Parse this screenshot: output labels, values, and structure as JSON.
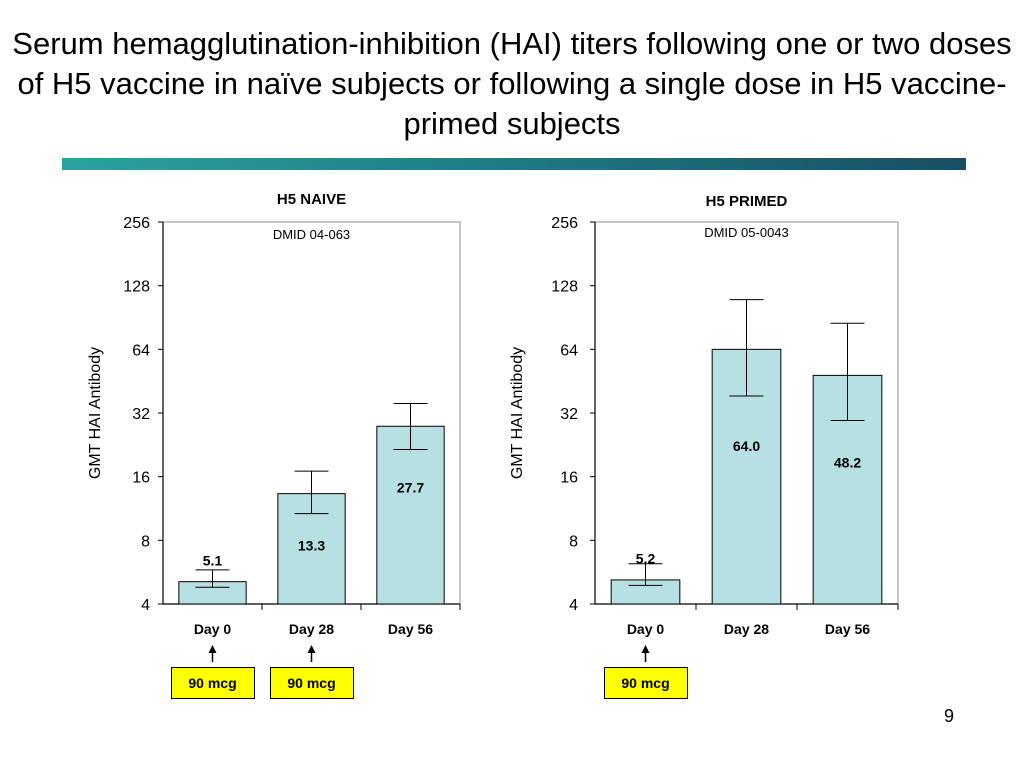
{
  "title": "Serum hemagglutination-inhibition (HAI) titers following one or two doses of H5 vaccine in naïve subjects or following a single dose in H5 vaccine-primed subjects",
  "page_number": "9",
  "dose_label": "90 mcg",
  "colors": {
    "bar_fill": "#b7e0e4",
    "bar_stroke": "#000000",
    "dose_box": "#ffff00"
  },
  "chart_data": [
    {
      "type": "bar",
      "title": "H5 NAIVE",
      "subtitle": "DMID 04-063",
      "ylabel": "GMT HAI Antibody",
      "yscale": "log2",
      "ylim": [
        4,
        256
      ],
      "yticks": [
        "4",
        "8",
        "16",
        "32",
        "64",
        "128",
        "256"
      ],
      "categories": [
        "Day 0",
        "Day 28",
        "Day 56"
      ],
      "values": [
        5.1,
        13.3,
        27.7
      ],
      "value_labels": [
        "5.1",
        "13.3",
        "27.7"
      ],
      "error_low": [
        4.8,
        10.7,
        21.5
      ],
      "error_high": [
        5.8,
        17.0,
        35.5
      ],
      "dose_markers": [
        "Day 0",
        "Day 28"
      ]
    },
    {
      "type": "bar",
      "title": "H5 PRIMED",
      "subtitle": "DMID 05-0043",
      "ylabel": "GMT HAI Antibody",
      "yscale": "log2",
      "ylim": [
        4,
        256
      ],
      "yticks": [
        "4",
        "8",
        "16",
        "32",
        "64",
        "128",
        "256"
      ],
      "categories": [
        "Day 0",
        "Day 28",
        "Day 56"
      ],
      "values": [
        5.2,
        64.0,
        48.2
      ],
      "value_labels": [
        "5.2",
        "64.0",
        "48.2"
      ],
      "error_low": [
        4.9,
        38.5,
        29.5
      ],
      "error_high": [
        6.2,
        110.0,
        85.0
      ],
      "dose_markers": [
        "Day 0"
      ]
    }
  ]
}
